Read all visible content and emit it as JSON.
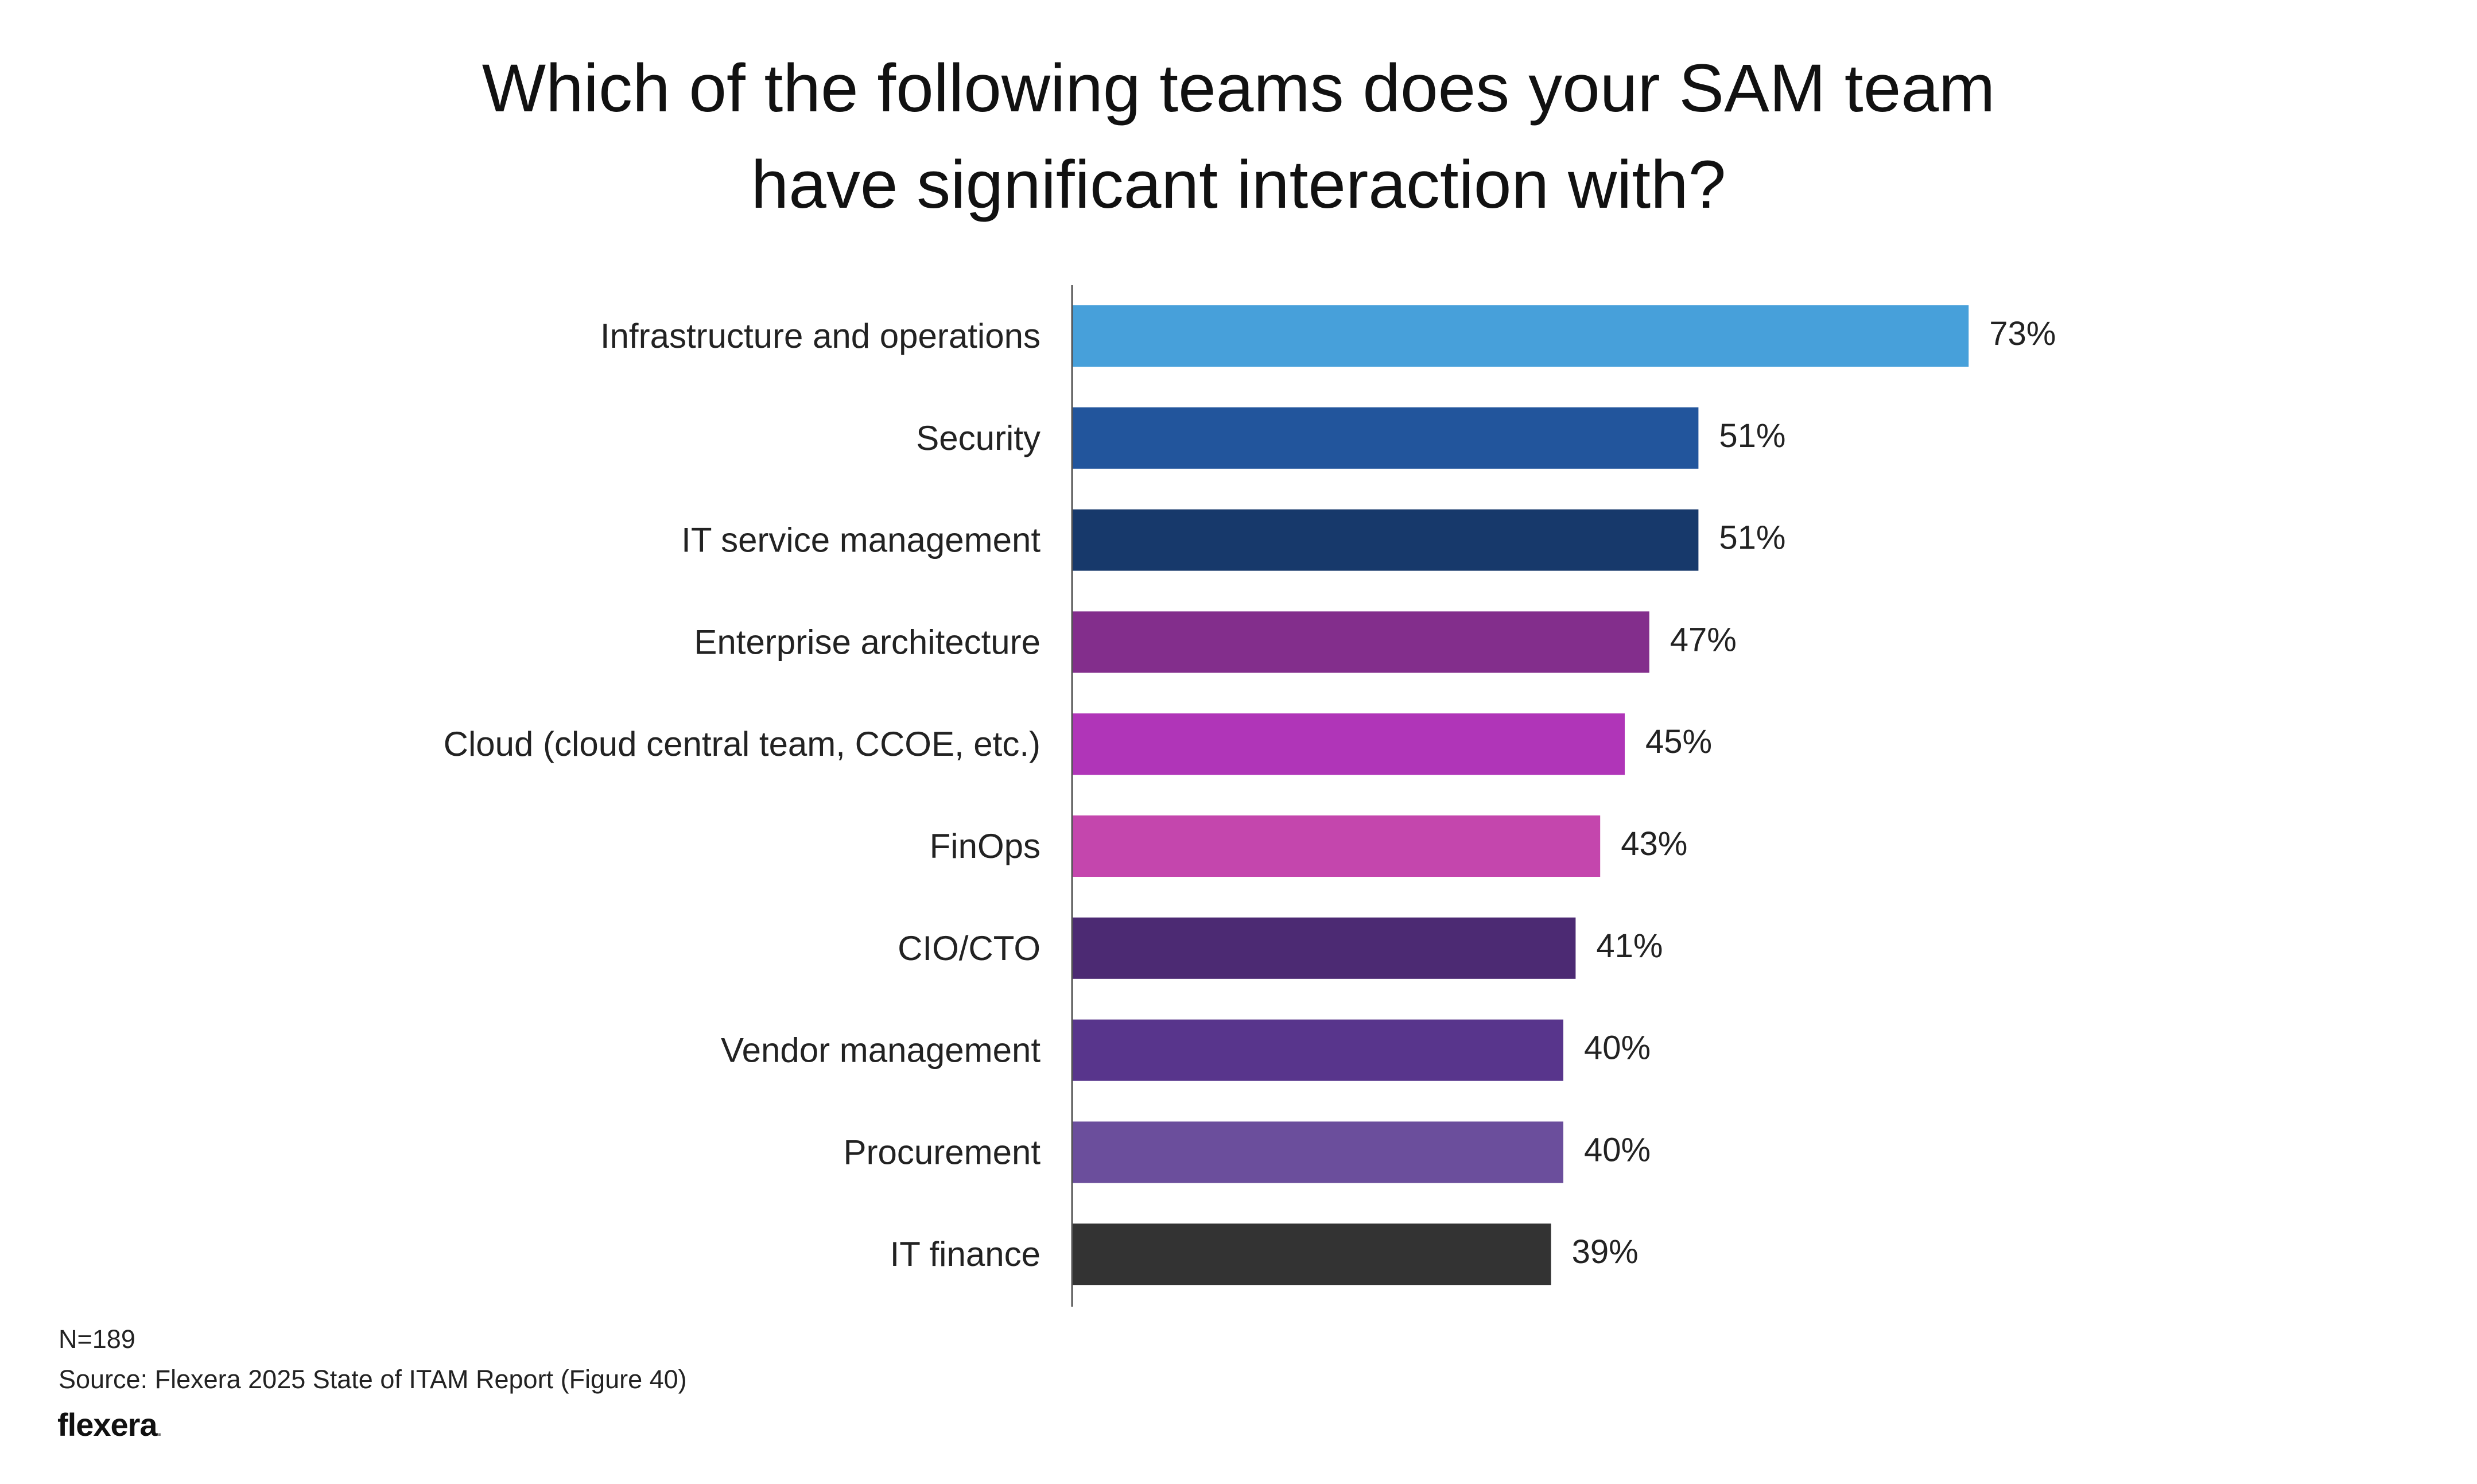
{
  "chart_data": {
    "type": "bar",
    "orientation": "horizontal",
    "title_lines": [
      "Which of the following teams does your SAM team",
      "have significant interaction with?"
    ],
    "categories": [
      "Infrastructure and operations",
      "Security",
      "IT service management",
      "Enterprise architecture",
      "Cloud (cloud central team, CCOE, etc.)",
      "FinOps",
      "CIO/CTO",
      "Vendor management",
      "Procurement",
      "IT finance"
    ],
    "values": [
      73,
      51,
      51,
      47,
      45,
      43,
      41,
      40,
      40,
      39
    ],
    "value_labels": [
      "73%",
      "51%",
      "51%",
      "47%",
      "45%",
      "43%",
      "41%",
      "40%",
      "40%",
      "39%"
    ],
    "colors": [
      "#47a0da",
      "#22559c",
      "#17396b",
      "#832e8c",
      "#b035b8",
      "#c446ad",
      "#4c2a73",
      "#58358c",
      "#6b4e9c",
      "#333333"
    ],
    "xlim": [
      0,
      100
    ],
    "xlabel": "",
    "ylabel": "",
    "grid": false,
    "legend": "none"
  },
  "footer": {
    "n": "N=189",
    "source": "Source: Flexera 2025 State of ITAM Report (Figure 40)",
    "brand": "flexera",
    "brand_dot": "."
  }
}
